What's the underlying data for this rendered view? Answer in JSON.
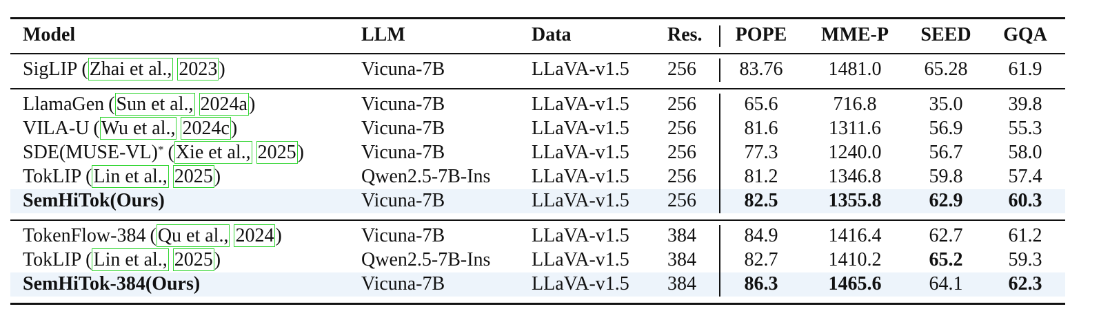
{
  "table": {
    "columns": [
      "Model",
      "LLM",
      "Data",
      "Res.",
      "POPE",
      "MME-P",
      "SEED",
      "GQA"
    ],
    "groups": [
      [
        {
          "model": {
            "name": "SigLIP",
            "cite": [
              "(",
              "Zhai et al.,",
              "2023",
              ")"
            ]
          },
          "cells": [
            "Vicuna-7B",
            "LLaVA-v1.5",
            "256",
            "83.76",
            "1481.0",
            "65.28",
            "61.9"
          ],
          "bold": []
        }
      ],
      [
        {
          "model": {
            "name": "LlamaGen",
            "cite": [
              "(",
              "Sun et al.,",
              "2024a",
              ")"
            ]
          },
          "cells": [
            "Vicuna-7B",
            "LLaVA-v1.5",
            "256",
            "65.6",
            "716.8",
            "35.0",
            "39.8"
          ],
          "bold": []
        },
        {
          "model": {
            "name": "VILA-U",
            "cite": [
              "(",
              "Wu et al.,",
              "2024c",
              ")"
            ]
          },
          "cells": [
            "Vicuna-7B",
            "LLaVA-v1.5",
            "256",
            "81.6",
            "1311.6",
            "56.9",
            "55.3"
          ],
          "bold": []
        },
        {
          "model": {
            "name": "SDE(MUSE-VL)",
            "note": "*",
            "cite": [
              "(",
              "Xie et al.,",
              "2025",
              ")"
            ]
          },
          "cells": [
            "Vicuna-7B",
            "LLaVA-v1.5",
            "256",
            "77.3",
            "1240.0",
            "56.7",
            "58.0"
          ],
          "bold": []
        },
        {
          "model": {
            "name": "TokLIP",
            "cite": [
              "(",
              "Lin et al.,",
              "2025",
              ")"
            ]
          },
          "cells": [
            "Qwen2.5-7B-Ins",
            "LLaVA-v1.5",
            "256",
            "81.2",
            "1346.8",
            "59.8",
            "57.4"
          ],
          "bold": []
        },
        {
          "model": {
            "name": "SemHiTok(Ours)"
          },
          "cells": [
            "Vicuna-7B",
            "LLaVA-v1.5",
            "256",
            "82.5",
            "1355.8",
            "62.9",
            "60.3"
          ],
          "bold": [
            0,
            4,
            5,
            6,
            7
          ],
          "highlight": true
        }
      ],
      [
        {
          "model": {
            "name": "TokenFlow-384",
            "cite": [
              "(",
              "Qu et al.,",
              "2024",
              ")"
            ]
          },
          "cells": [
            "Vicuna-7B",
            "LLaVA-v1.5",
            "384",
            "84.9",
            "1416.4",
            "62.7",
            "61.2"
          ],
          "bold": []
        },
        {
          "model": {
            "name": "TokLIP",
            "cite": [
              "(",
              "Lin et al.,",
              "2025",
              ")"
            ]
          },
          "cells": [
            "Qwen2.5-7B-Ins",
            "LLaVA-v1.5",
            "384",
            "82.7",
            "1410.2",
            "65.2",
            "59.3"
          ],
          "bold": [
            6
          ]
        },
        {
          "model": {
            "name": "SemHiTok-384(Ours)"
          },
          "cells": [
            "Vicuna-7B",
            "LLaVA-v1.5",
            "384",
            "86.3",
            "1465.6",
            "64.1",
            "62.3"
          ],
          "bold": [
            0,
            4,
            5,
            7
          ],
          "highlight": true
        }
      ]
    ]
  }
}
